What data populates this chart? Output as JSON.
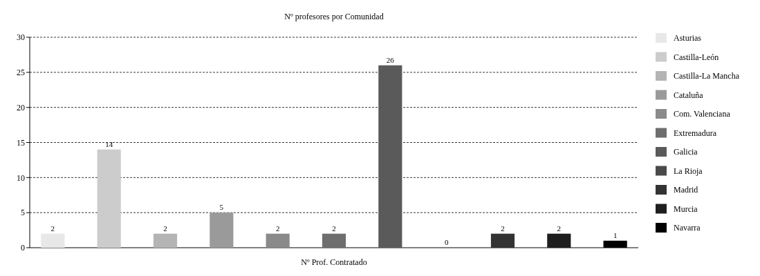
{
  "chart_data": {
    "type": "bar",
    "title": "Nº profesores por Comunidad",
    "xlabel": "Nº Prof. Contratado",
    "categories": [
      null,
      null,
      null,
      null,
      null,
      null,
      null,
      null,
      null,
      null,
      null
    ],
    "stacked": true,
    "series": [
      {
        "name": "Asturias",
        "color": "#e8e8e8",
        "values": [
          2,
          null,
          null,
          null,
          null,
          null,
          null,
          null,
          null,
          null,
          null
        ]
      },
      {
        "name": "Castilla-León",
        "color": "#cccccc",
        "values": [
          null,
          14,
          null,
          null,
          null,
          null,
          null,
          null,
          null,
          null,
          null
        ]
      },
      {
        "name": "Castilla-La Mancha",
        "color": "#b4b4b4",
        "values": [
          null,
          null,
          2,
          null,
          null,
          null,
          null,
          null,
          null,
          null,
          null
        ]
      },
      {
        "name": "Cataluña",
        "color": "#9a9a9a",
        "values": [
          null,
          null,
          null,
          5,
          null,
          null,
          null,
          null,
          null,
          null,
          null
        ]
      },
      {
        "name": "Com. Valenciana",
        "color": "#8a8a8a",
        "values": [
          null,
          null,
          null,
          null,
          2,
          null,
          null,
          null,
          null,
          null,
          null
        ]
      },
      {
        "name": "Extremadura",
        "color": "#6e6e6e",
        "values": [
          null,
          null,
          null,
          null,
          null,
          2,
          null,
          null,
          null,
          null,
          null
        ]
      },
      {
        "name": "Galicia",
        "color": "#5a5a5a",
        "values": [
          null,
          null,
          null,
          null,
          null,
          null,
          26,
          null,
          null,
          null,
          null
        ]
      },
      {
        "name": "La Rioja",
        "color": "#4a4a4a",
        "values": [
          null,
          null,
          null,
          null,
          null,
          null,
          null,
          0,
          null,
          null,
          null
        ]
      },
      {
        "name": "Madrid",
        "color": "#333333",
        "values": [
          null,
          null,
          null,
          null,
          null,
          null,
          null,
          null,
          2,
          null,
          null
        ]
      },
      {
        "name": "Murcia",
        "color": "#1e1e1e",
        "values": [
          null,
          null,
          null,
          null,
          null,
          null,
          null,
          null,
          null,
          2,
          null
        ]
      },
      {
        "name": "Navarra",
        "color": "#000000",
        "values": [
          null,
          null,
          null,
          null,
          null,
          null,
          null,
          null,
          null,
          null,
          1
        ]
      }
    ],
    "ylim": [
      0,
      30
    ],
    "yticks": [
      0,
      5,
      10,
      15,
      20,
      25,
      30
    ],
    "grid": "y",
    "legend": "right",
    "tick_labels": "y",
    "data_labels": true
  }
}
